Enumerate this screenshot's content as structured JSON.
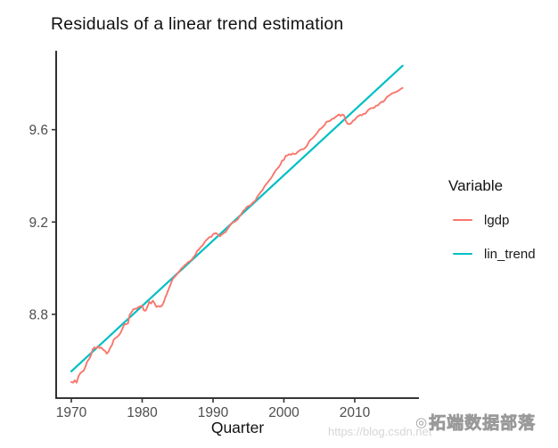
{
  "chart_data": {
    "type": "line",
    "title": "Residuals of a linear trend estimation",
    "xlabel": "Quarter",
    "ylabel": "",
    "xlim": [
      1967.86,
      2019.06
    ],
    "ylim": [
      8.437,
      9.942
    ],
    "xticks": [
      1970,
      1980,
      1990,
      2000,
      2010
    ],
    "xtick_labels": [
      "1970",
      "1980",
      "1990",
      "2000",
      "2010"
    ],
    "yticks": [
      8.8,
      9.2,
      9.6
    ],
    "ytick_labels": [
      "8.8",
      "9.2",
      "9.6"
    ],
    "grid": false,
    "axis_color": "#1a1a1a",
    "tick_color": "#333333",
    "tick_label_color": "#4d4d4d",
    "legend": {
      "title": "Variable",
      "position": "right",
      "entries": [
        "lgdp",
        "lin_trend"
      ]
    },
    "x_start": 1970,
    "x_step": 0.25,
    "series": [
      {
        "name": "lgdp",
        "color": "#F8766D",
        "kind": "polyline",
        "values": [
          8.507,
          8.504,
          8.514,
          8.504,
          8.531,
          8.544,
          8.551,
          8.556,
          8.574,
          8.596,
          8.606,
          8.621,
          8.647,
          8.657,
          8.652,
          8.662,
          8.654,
          8.656,
          8.646,
          8.642,
          8.63,
          8.638,
          8.655,
          8.668,
          8.691,
          8.698,
          8.703,
          8.711,
          8.723,
          8.741,
          8.757,
          8.757,
          8.761,
          8.799,
          8.809,
          8.822,
          8.824,
          8.825,
          8.832,
          8.835,
          8.838,
          8.817,
          8.816,
          8.834,
          8.854,
          8.847,
          8.859,
          8.848,
          8.832,
          8.836,
          8.833,
          8.836,
          8.849,
          8.871,
          8.89,
          8.91,
          8.929,
          8.95,
          8.96,
          8.968,
          8.978,
          8.986,
          8.998,
          9.004,
          9.013,
          9.018,
          9.027,
          9.03,
          9.037,
          9.048,
          9.057,
          9.075,
          9.08,
          9.092,
          9.098,
          9.11,
          9.12,
          9.127,
          9.135,
          9.136,
          9.147,
          9.151,
          9.151,
          9.143,
          9.138,
          9.146,
          9.152,
          9.156,
          9.168,
          9.179,
          9.189,
          9.199,
          9.2,
          9.206,
          9.212,
          9.225,
          9.235,
          9.248,
          9.254,
          9.265,
          9.269,
          9.272,
          9.28,
          9.287,
          9.294,
          9.31,
          9.32,
          9.331,
          9.338,
          9.353,
          9.364,
          9.373,
          9.383,
          9.393,
          9.406,
          9.419,
          9.429,
          9.437,
          9.448,
          9.466,
          9.469,
          9.487,
          9.488,
          9.494,
          9.491,
          9.497,
          9.494,
          9.497,
          9.505,
          9.511,
          9.515,
          9.516,
          9.521,
          9.53,
          9.546,
          9.557,
          9.562,
          9.57,
          9.579,
          9.589,
          9.6,
          9.605,
          9.613,
          9.62,
          9.634,
          9.636,
          9.638,
          9.646,
          9.648,
          9.654,
          9.66,
          9.666,
          9.66,
          9.666,
          9.661,
          9.637,
          9.626,
          9.624,
          9.628,
          9.639,
          9.643,
          9.653,
          9.659,
          9.664,
          9.662,
          9.669,
          9.669,
          9.68,
          9.688,
          9.693,
          9.694,
          9.695,
          9.704,
          9.705,
          9.713,
          9.721,
          9.72,
          9.729,
          9.741,
          9.746,
          9.751,
          9.757,
          9.76,
          9.763,
          9.766,
          9.771,
          9.777,
          9.781
        ]
      },
      {
        "name": "lin_trend",
        "color": "#00BFC4",
        "kind": "straight-line",
        "x": [
          1970.0,
          2016.75
        ],
        "y": [
          8.553,
          9.877
        ]
      }
    ]
  },
  "watermark": {
    "url_text": "https://blog.csdn.net",
    "logo_glyph": "◎",
    "badge_text": "拓端数据部落"
  }
}
